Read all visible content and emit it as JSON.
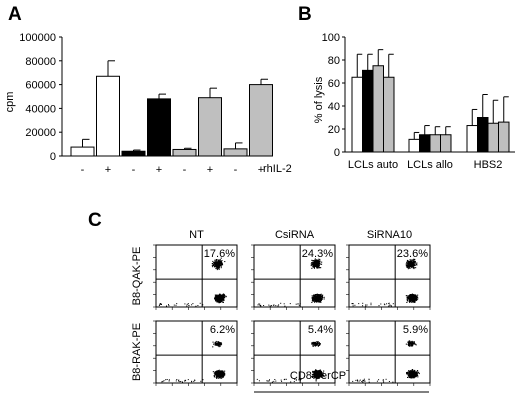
{
  "panels": {
    "A": {
      "label": "A"
    },
    "B": {
      "label": "B"
    },
    "C": {
      "label": "C"
    }
  },
  "chart_data": [
    {
      "panel": "A",
      "type": "bar",
      "ylabel": "cpm",
      "xlabel": "",
      "ylim": [
        0,
        100000
      ],
      "yticks": [
        "0",
        "20000",
        "40000",
        "60000",
        "80000",
        "100000"
      ],
      "yticks_values": [
        0,
        20000,
        40000,
        60000,
        80000,
        100000
      ],
      "categories": [
        "-",
        "+",
        "-",
        "+",
        "-",
        "+",
        "-",
        "+"
      ],
      "trailing_label": "rhIL-2",
      "values": [
        7500,
        67000,
        4000,
        48000,
        5500,
        49000,
        6000,
        60000
      ],
      "errors": [
        6500,
        13000,
        1000,
        4000,
        1000,
        8000,
        5000,
        4500
      ],
      "fills": [
        "#ffffff",
        "#ffffff",
        "#000000",
        "#000000",
        "#bfbfbf",
        "#bfbfbf",
        "#bfbfbf",
        "#bfbfbf"
      ]
    },
    {
      "panel": "B",
      "type": "bar",
      "ylabel": "% of lysis",
      "xlabel": "",
      "ylim": [
        0,
        100
      ],
      "yticks": [
        "0",
        "20",
        "40",
        "60",
        "80",
        "100"
      ],
      "yticks_values": [
        0,
        20,
        40,
        60,
        80,
        100
      ],
      "categories": [
        "LCLs auto",
        "LCLs allo",
        "HBS2"
      ],
      "series": [
        {
          "fill": "#ffffff",
          "values": [
            65,
            11,
            23
          ],
          "errors": [
            20,
            6,
            14
          ]
        },
        {
          "fill": "#000000",
          "values": [
            71,
            15,
            30
          ],
          "errors": [
            14,
            8,
            20
          ]
        },
        {
          "fill": "#bfbfbf",
          "values": [
            75,
            15,
            25
          ],
          "errors": [
            14,
            7,
            20
          ]
        },
        {
          "fill": "#bfbfbf",
          "values": [
            65,
            15,
            26
          ],
          "errors": [
            20,
            7,
            22
          ]
        }
      ]
    },
    {
      "panel": "C",
      "type": "scatter",
      "xlabel": "CD8 perCP",
      "columns": [
        "NT",
        "CsiRNA",
        "SiRNA10"
      ],
      "rows": [
        "B8-QAK-PE",
        "B8-RAK-PE"
      ],
      "percentages": [
        [
          "17.6%",
          "24.3%",
          "23.6%"
        ],
        [
          "6.2%",
          "5.4%",
          "5.9%"
        ]
      ]
    }
  ]
}
